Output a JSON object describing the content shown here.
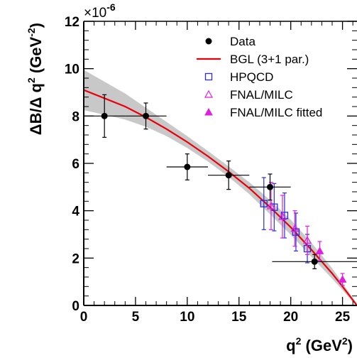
{
  "chart_data": {
    "type": "scatter",
    "title": "",
    "xlabel": {
      "base": "q",
      "sup": "2",
      "unit_open": " (GeV",
      "unit_sup": "2",
      "unit_close": ")"
    },
    "ylabel": {
      "text": "ΔB/Δ q",
      "sup": "2",
      "unit_open": " (GeV",
      "unit_sup": "-2",
      "unit_close": ")"
    },
    "y_multiplier": {
      "base": "×10",
      "exp": "-6"
    },
    "xlim": [
      0,
      26.4
    ],
    "ylim": [
      0,
      12
    ],
    "x_ticks": [
      0,
      5,
      10,
      15,
      20,
      25
    ],
    "y_ticks": [
      0,
      2,
      4,
      6,
      8,
      10,
      12
    ],
    "grid": false,
    "legend_position": "top-right",
    "legend": [
      {
        "label": "Data",
        "marker": "filled-circle",
        "color": "#000000"
      },
      {
        "label": "BGL (3+1 par.)",
        "marker": "line",
        "color": "#e8000b"
      },
      {
        "label": "HPQCD",
        "marker": "open-square",
        "color": "#2b2bd9"
      },
      {
        "label": "FNAL/MILC",
        "marker": "open-triangle",
        "color": "#e01ee0"
      },
      {
        "label": "FNAL/MILC fitted",
        "marker": "filled-triangle",
        "color": "#e01ee0"
      }
    ],
    "series": [
      {
        "name": "Data",
        "color": "#000000",
        "points": [
          {
            "x": 2.0,
            "y": 8.0,
            "xerr": 2.0,
            "yerr": 0.9
          },
          {
            "x": 6.0,
            "y": 8.0,
            "xerr": 2.0,
            "yerr": 0.55
          },
          {
            "x": 10.0,
            "y": 5.85,
            "xerr": 2.0,
            "yerr": 0.55
          },
          {
            "x": 14.0,
            "y": 5.5,
            "xerr": 2.0,
            "yerr": 0.6
          },
          {
            "x": 18.0,
            "y": 5.0,
            "xerr": 2.0,
            "yerr": 0.55
          },
          {
            "x": 22.3,
            "y": 1.85,
            "xerr": 4.1,
            "yerr": 0.3
          }
        ]
      },
      {
        "name": "BGL (3+1 par.)",
        "color": "#e8000b",
        "band_color": "#c8c8c8",
        "x": [
          0,
          2,
          4,
          6,
          8,
          10,
          12,
          14,
          16,
          18,
          20,
          22,
          24,
          25,
          26.4
        ],
        "y": [
          9.1,
          8.75,
          8.4,
          7.95,
          7.45,
          6.9,
          6.3,
          5.65,
          4.95,
          4.15,
          3.3,
          2.35,
          1.35,
          0.8,
          0.0
        ],
        "band_half_width": [
          0.85,
          0.7,
          0.55,
          0.4,
          0.3,
          0.25,
          0.22,
          0.22,
          0.25,
          0.3,
          0.32,
          0.3,
          0.22,
          0.15,
          0.05
        ]
      },
      {
        "name": "HPQCD",
        "color": "#2b2bd9",
        "points": [
          {
            "x": 17.4,
            "y": 4.3,
            "yerr": 1.1
          },
          {
            "x": 18.4,
            "y": 4.15,
            "yerr": 1.0
          },
          {
            "x": 19.4,
            "y": 3.8,
            "yerr": 0.95
          },
          {
            "x": 20.5,
            "y": 3.1,
            "yerr": 0.8
          },
          {
            "x": 21.6,
            "y": 2.4,
            "yerr": 0.6
          }
        ]
      },
      {
        "name": "FNAL/MILC",
        "color": "#e01ee0",
        "points": [
          {
            "x": 18.1,
            "y": 4.2,
            "yerr": 1.0
          },
          {
            "x": 19.2,
            "y": 3.75,
            "yerr": 0.9
          },
          {
            "x": 20.4,
            "y": 3.25,
            "yerr": 0.75
          },
          {
            "x": 21.6,
            "y": 2.75,
            "yerr": 0.6
          }
        ]
      },
      {
        "name": "FNAL/MILC fitted",
        "color": "#e01ee0",
        "points": [
          {
            "x": 22.8,
            "y": 2.3,
            "yerr": 0.4
          },
          {
            "x": 25.0,
            "y": 1.1,
            "yerr": 0.25
          }
        ]
      }
    ]
  }
}
